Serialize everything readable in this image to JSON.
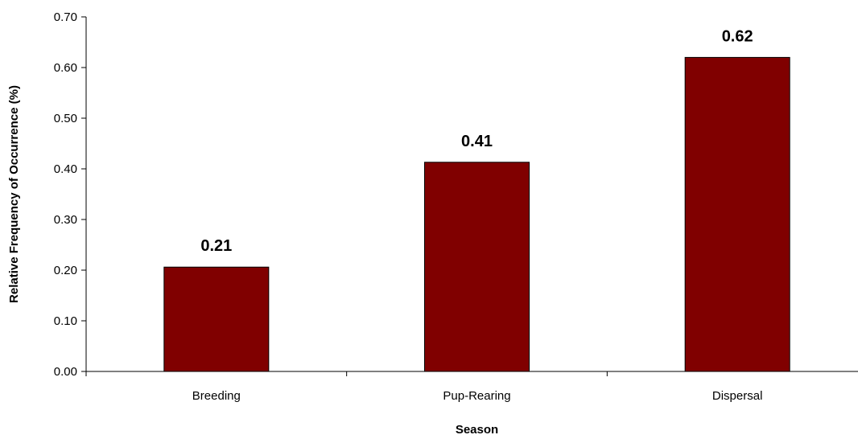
{
  "chart_data": {
    "type": "bar",
    "title": "",
    "xlabel": "Season",
    "ylabel": "Relative Frequency of Occurrence (%)",
    "categories": [
      "Breeding",
      "Pup-Rearing",
      "Dispersal"
    ],
    "values": [
      0.206,
      0.413,
      0.62
    ],
    "data_labels": [
      "0.21",
      "0.41",
      "0.62"
    ],
    "ylim": [
      0,
      0.7
    ],
    "yticks": [
      0,
      0.1,
      0.2,
      0.3,
      0.4,
      0.5,
      0.6,
      0.7
    ],
    "ytick_labels": [
      "0.00",
      "0.10",
      "0.20",
      "0.30",
      "0.40",
      "0.50",
      "0.60",
      "0.70"
    ],
    "grid": false,
    "legend": "none",
    "colors": {
      "bar_fill": "#800000",
      "bar_stroke": "#000000",
      "axis": "#000000"
    }
  }
}
